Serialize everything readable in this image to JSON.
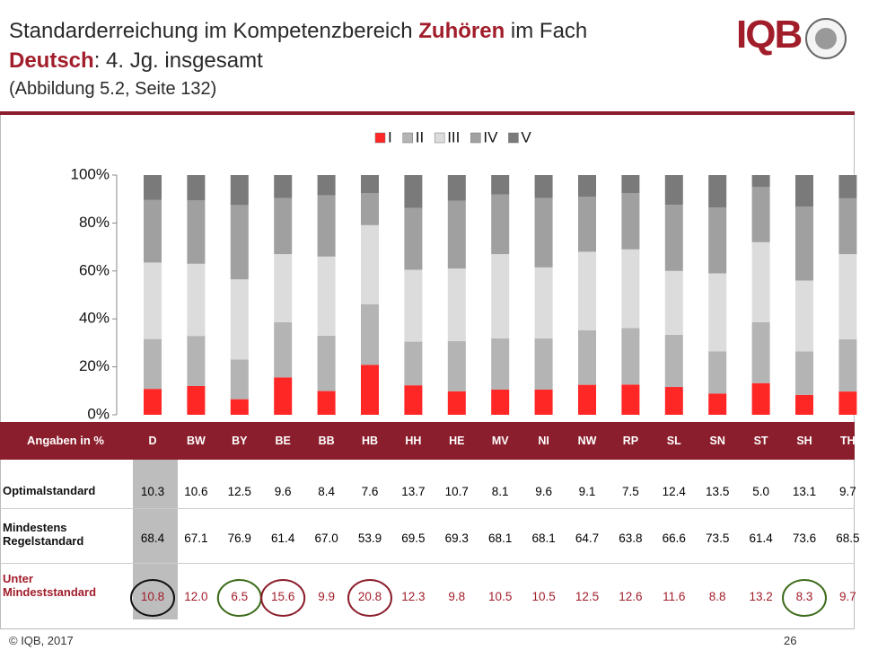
{
  "slide": {
    "title_parts": [
      "Standarderreichung im Kompetenzbereich ",
      "Zuhören",
      " im Fach",
      "Deutsch",
      ": 4. Jg. insgesamt"
    ],
    "subtitle": "(Abbildung 5.2, Seite 132)",
    "logo": "IQB",
    "footer": "© IQB, 2017",
    "page": "26"
  },
  "chart_data": {
    "type": "bar",
    "stacked": true,
    "grid": false,
    "legend": "top",
    "categories": [
      "D",
      "BW",
      "BY",
      "BE",
      "BB",
      "HB",
      "HH",
      "HE",
      "MV",
      "NI",
      "NW",
      "RP",
      "SL",
      "SN",
      "ST",
      "SH",
      "TH"
    ],
    "series": [
      {
        "name": "I",
        "color": "#ff2626",
        "values": [
          10.8,
          12.0,
          6.5,
          15.6,
          9.9,
          20.8,
          12.3,
          9.8,
          10.5,
          10.5,
          12.5,
          12.6,
          11.6,
          8.8,
          13.2,
          8.3,
          9.7
        ]
      },
      {
        "name": "II",
        "color": "#b4b4b4",
        "values": [
          20.8,
          20.9,
          16.6,
          23.0,
          23.1,
          25.3,
          18.2,
          20.9,
          21.4,
          21.4,
          22.8,
          23.6,
          21.8,
          17.7,
          25.4,
          18.1,
          21.8
        ]
      },
      {
        "name": "III",
        "color": "#dcdcdc",
        "values": [
          31.9,
          30.1,
          33.4,
          28.4,
          33.0,
          33.0,
          30.0,
          30.3,
          35.1,
          29.6,
          32.7,
          32.8,
          26.6,
          32.5,
          33.4,
          29.6,
          35.5
        ]
      },
      {
        "name": "IV",
        "color": "#a0a0a0",
        "values": [
          26.2,
          26.4,
          31.0,
          23.4,
          25.6,
          13.3,
          25.8,
          28.3,
          24.9,
          28.9,
          22.9,
          23.5,
          27.6,
          27.5,
          23.0,
          30.9,
          23.3
        ]
      },
      {
        "name": "V",
        "color": "#7a7a7a",
        "values": [
          10.3,
          10.6,
          12.5,
          9.6,
          8.4,
          7.6,
          13.7,
          10.7,
          8.1,
          9.6,
          9.1,
          7.5,
          12.4,
          13.5,
          5.0,
          13.1,
          9.7
        ]
      }
    ],
    "ylim": [
      0,
      100
    ],
    "yticks": [
      {
        "value": 0,
        "label": "0%"
      },
      {
        "value": 20,
        "label": "20%"
      },
      {
        "value": 40,
        "label": "40%"
      },
      {
        "value": 60,
        "label": "60%"
      },
      {
        "value": 80,
        "label": "80%"
      },
      {
        "value": 100,
        "label": "100%"
      }
    ]
  },
  "table": {
    "corner": "Angaben in %",
    "rows": [
      {
        "label": "Optimalstandard",
        "values": [
          "10.3",
          "10.6",
          "12.5",
          "9.6",
          "8.4",
          "7.6",
          "13.7",
          "10.7",
          "8.1",
          "9.6",
          "9.1",
          "7.5",
          "12.4",
          "13.5",
          "5.0",
          "13.1",
          "9.7"
        ]
      },
      {
        "label": "Mindestens Regelstandard",
        "values": [
          "68.4",
          "67.1",
          "76.9",
          "61.4",
          "67.0",
          "53.9",
          "69.5",
          "69.3",
          "68.1",
          "68.1",
          "64.7",
          "63.8",
          "66.6",
          "73.5",
          "61.4",
          "73.6",
          "68.5"
        ]
      },
      {
        "label": "Unter Mindeststandard",
        "values": [
          "10.8",
          "12.0",
          "6.5",
          "15.6",
          "9.9",
          "20.8",
          "12.3",
          "9.8",
          "10.5",
          "10.5",
          "12.5",
          "12.6",
          "11.6",
          "8.8",
          "13.2",
          "8.3",
          "9.7"
        ]
      }
    ]
  }
}
